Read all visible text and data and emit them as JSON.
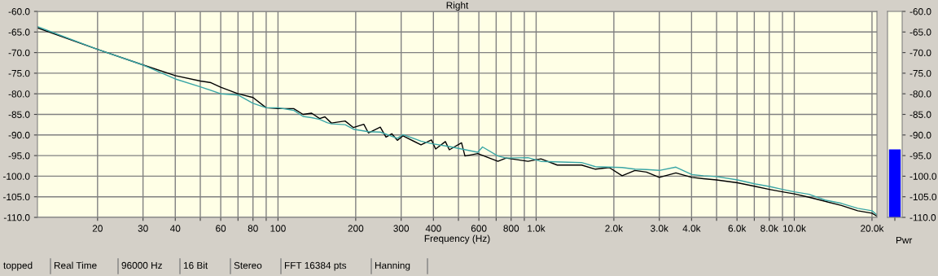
{
  "chart_data": [
    {
      "type": "line",
      "title": "Right",
      "xlabel": "Frequency (Hz)",
      "log": "x",
      "grid": true,
      "legend": false,
      "marker": "none",
      "line_style": "solid",
      "xlim": [
        11.7,
        20900
      ],
      "ylim": [
        -110,
        -60
      ],
      "xticks": [
        20,
        30,
        40,
        {
          "value": 50,
          "label": null
        },
        60,
        {
          "value": 70,
          "label": null
        },
        80,
        {
          "value": 90,
          "label": null
        },
        100,
        200,
        300,
        400,
        {
          "value": 500,
          "label": null
        },
        600,
        {
          "value": 700,
          "label": null
        },
        800,
        {
          "value": 900,
          "label": null
        },
        {
          "value": 1000,
          "label": "1.0k"
        },
        {
          "value": 2000,
          "label": "2.0k"
        },
        {
          "value": 3000,
          "label": "3.0k"
        },
        {
          "value": 4000,
          "label": "4.0k"
        },
        {
          "value": 5000,
          "label": null
        },
        {
          "value": 6000,
          "label": "6.0k"
        },
        {
          "value": 7000,
          "label": null
        },
        {
          "value": 8000,
          "label": "8.0k"
        },
        {
          "value": 9000,
          "label": null
        },
        {
          "value": 10000,
          "label": "10.0k"
        },
        {
          "value": 20000,
          "label": "20.0k"
        }
      ],
      "yticks": [
        {
          "value": -60,
          "label": "-60.0"
        },
        {
          "value": -65,
          "label": "-65.0"
        },
        {
          "value": -70,
          "label": "-70.0"
        },
        {
          "value": -75,
          "label": "-75.0"
        },
        {
          "value": -80,
          "label": "-80.0"
        },
        {
          "value": -85,
          "label": "-85.0"
        },
        {
          "value": -90,
          "label": "-90.0"
        },
        {
          "value": -95,
          "label": "-95.0"
        },
        {
          "value": -100,
          "label": "-100.0"
        },
        {
          "value": -105,
          "label": "-105.0"
        },
        {
          "value": -110,
          "label": "-110.0"
        }
      ],
      "series": [
        {
          "color": "#000000",
          "x": [
            11.7,
            20,
            30,
            40,
            50,
            55,
            60,
            70,
            80,
            90,
            100,
            115,
            125,
            135,
            145,
            152,
            161,
            182,
            196,
            215,
            224,
            249,
            262,
            276,
            290,
            305,
            358,
            393,
            408,
            445,
            461,
            514,
            530,
            594,
            711,
            765,
            930,
            1044,
            1207,
            1500,
            1697,
            1919,
            2153,
            2414,
            2675,
            3000,
            3478,
            4012,
            4447,
            5000,
            6027,
            7070,
            8000,
            9000,
            10000,
            11400,
            13170,
            15230,
            17610,
            20000,
            20900
          ],
          "values": [
            -64.0,
            -69.2,
            -73.0,
            -75.6,
            -76.9,
            -77.3,
            -78.4,
            -80.0,
            -80.9,
            -83.4,
            -83.6,
            -83.6,
            -85.0,
            -84.7,
            -86.0,
            -85.6,
            -87.1,
            -86.6,
            -88.2,
            -87.4,
            -89.5,
            -88.1,
            -90.5,
            -89.7,
            -91.3,
            -90.2,
            -92.4,
            -91.2,
            -93.4,
            -91.6,
            -93.6,
            -91.9,
            -95.1,
            -94.5,
            -96.4,
            -95.6,
            -96.4,
            -95.8,
            -97.3,
            -97.3,
            -98.3,
            -97.9,
            -99.9,
            -98.6,
            -99.0,
            -100.3,
            -99.2,
            -100.3,
            -100.6,
            -100.9,
            -101.6,
            -102.5,
            -103.2,
            -103.8,
            -104.3,
            -105.1,
            -106.1,
            -107.1,
            -108.4,
            -109.0,
            -109.7
          ]
        },
        {
          "color": "#3aa6a6",
          "x": [
            11.7,
            20,
            30,
            40,
            50,
            60,
            70,
            80,
            90,
            100,
            115,
            125,
            135,
            145,
            155,
            161,
            182,
            196,
            224,
            249,
            290,
            305,
            358,
            393,
            461,
            514,
            594,
            620,
            711,
            765,
            930,
            1044,
            1500,
            1697,
            2153,
            2414,
            2675,
            3000,
            3478,
            4012,
            4447,
            5000,
            6027,
            7070,
            8000,
            9000,
            10000,
            11400,
            13170,
            15230,
            17610,
            20000,
            20900
          ],
          "values": [
            -63.7,
            -69.2,
            -73.0,
            -76.4,
            -78.3,
            -80.0,
            -80.3,
            -82.3,
            -83.4,
            -83.4,
            -84.0,
            -85.5,
            -85.8,
            -86.2,
            -87.0,
            -87.3,
            -87.5,
            -88.6,
            -89.2,
            -89.3,
            -90.8,
            -89.9,
            -91.5,
            -92.1,
            -92.8,
            -93.4,
            -94.2,
            -92.9,
            -95.1,
            -95.6,
            -95.5,
            -96.4,
            -96.7,
            -97.7,
            -97.9,
            -98.3,
            -98.4,
            -98.6,
            -97.8,
            -99.6,
            -99.9,
            -100.1,
            -100.9,
            -101.9,
            -102.5,
            -103.2,
            -103.8,
            -104.4,
            -105.8,
            -106.6,
            -107.8,
            -108.4,
            -109.4
          ]
        }
      ],
      "annotations": [
        "topped",
        "Real Time",
        "96000 Hz",
        "16 Bit",
        "Stereo",
        "FFT 16384 pts",
        "Hanning"
      ]
    },
    {
      "type": "bar",
      "xlabel": "Pwr",
      "tick_labels": "y",
      "categories": [
        null
      ],
      "values": [
        16.5
      ],
      "base": [
        -110
      ],
      "color": "#0000ff",
      "ylim": [
        -110,
        -60
      ],
      "yticks": [
        {
          "value": -60,
          "label": "-60.0"
        },
        {
          "value": -65,
          "label": "-65.0"
        },
        {
          "value": -70,
          "label": "-70.0"
        },
        {
          "value": -75,
          "label": "-75.0"
        },
        {
          "value": -80,
          "label": "-80.0"
        },
        {
          "value": -85,
          "label": "-85.0"
        },
        {
          "value": -90,
          "label": "-90.0"
        },
        {
          "value": -95,
          "label": "-95.0"
        },
        {
          "value": -100,
          "label": "-100.0"
        },
        {
          "value": -105,
          "label": "-105.0"
        },
        {
          "value": -110,
          "label": "-110.0"
        }
      ]
    }
  ]
}
